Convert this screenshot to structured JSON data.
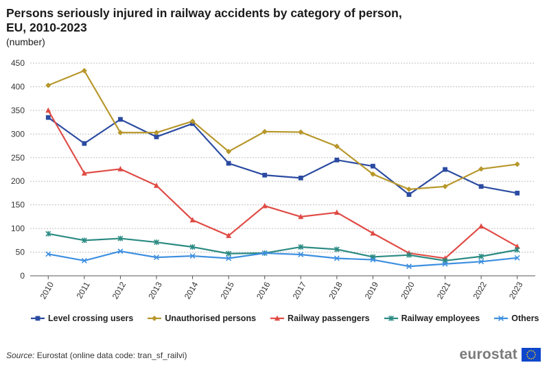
{
  "title": "Persons seriously injured in railway accidents by category of person, EU, 2010-2023",
  "subtitle": "(number)",
  "chart_data": {
    "type": "line",
    "title": "Persons seriously injured in railway accidents by category of person, EU, 2010-2023",
    "ylabel": "(number)",
    "xlabel": "",
    "ylim": [
      0,
      450
    ],
    "yticks": [
      0,
      50,
      100,
      150,
      200,
      250,
      300,
      350,
      400,
      450
    ],
    "grid": true,
    "legend_position": "bottom",
    "categories": [
      "2010",
      "2011",
      "2012",
      "2013",
      "2014",
      "2015",
      "2016",
      "2017",
      "2018",
      "2019",
      "2020",
      "2021",
      "2022",
      "2023"
    ],
    "series": [
      {
        "name": "Level crossing users",
        "color": "#2b4ba1",
        "marker": "square",
        "values": [
          335,
          280,
          331,
          294,
          322,
          238,
          213,
          207,
          245,
          232,
          172,
          225,
          189,
          175
        ]
      },
      {
        "name": "Unauthorised persons",
        "color": "#b7972b",
        "marker": "diamond",
        "values": [
          403,
          434,
          303,
          303,
          327,
          263,
          305,
          304,
          274,
          215,
          183,
          189,
          226,
          236
        ]
      },
      {
        "name": "Railway passengers",
        "color": "#e04b45",
        "marker": "triangle",
        "values": [
          350,
          217,
          226,
          191,
          118,
          85,
          148,
          125,
          134,
          90,
          48,
          37,
          105,
          62
        ]
      },
      {
        "name": "Railway employees",
        "color": "#2a8a82",
        "marker": "star",
        "values": [
          89,
          75,
          79,
          71,
          61,
          47,
          48,
          61,
          56,
          40,
          44,
          32,
          41,
          55
        ]
      },
      {
        "name": "Others",
        "color": "#3d8fe0",
        "marker": "x",
        "values": [
          46,
          32,
          52,
          39,
          42,
          37,
          48,
          45,
          37,
          34,
          20,
          25,
          30,
          38
        ]
      }
    ]
  },
  "source": {
    "label": "Source:",
    "text": "Eurostat (online data code: tran_sf_railvi)"
  },
  "logo": {
    "text": "eurostat"
  }
}
